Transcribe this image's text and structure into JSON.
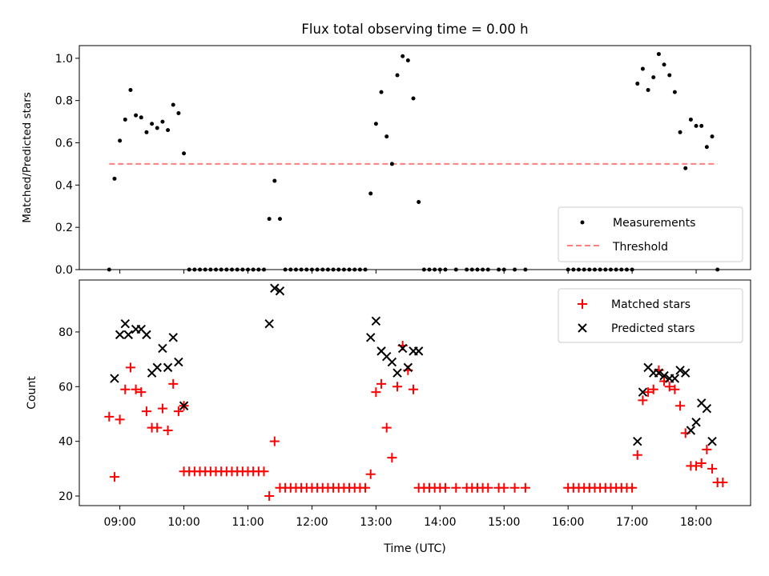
{
  "title": "Flux total observing time = 0.00 h",
  "colors": {
    "measurements": "#000000",
    "threshold": "#ff7f7f",
    "matched": "#ff0000",
    "predicted": "#000000"
  },
  "chart_data": [
    {
      "type": "scatter",
      "ylabel": "Matched/Predicted stars",
      "ylim": [
        0,
        1.06
      ],
      "yticks": [
        "0.0",
        "0.2",
        "0.4",
        "0.6",
        "0.8",
        "1.0"
      ],
      "legend": {
        "placement": "lower-right",
        "entries": [
          "Measurements",
          "Threshold"
        ]
      },
      "threshold": {
        "name": "Threshold",
        "value": 0.5,
        "x_range": [
          "08:50",
          "18:20"
        ]
      },
      "series": [
        {
          "name": "Measurements",
          "points": [
            [
              "08:50",
              0.0
            ],
            [
              "08:55",
              0.43
            ],
            [
              "09:00",
              0.61
            ],
            [
              "09:05",
              0.71
            ],
            [
              "09:10",
              0.85
            ],
            [
              "09:15",
              0.73
            ],
            [
              "09:20",
              0.72
            ],
            [
              "09:25",
              0.65
            ],
            [
              "09:30",
              0.69
            ],
            [
              "09:35",
              0.67
            ],
            [
              "09:40",
              0.7
            ],
            [
              "09:45",
              0.66
            ],
            [
              "09:50",
              0.78
            ],
            [
              "09:55",
              0.74
            ],
            [
              "10:00",
              0.55
            ],
            [
              "10:05",
              0.0
            ],
            [
              "10:10",
              0.0
            ],
            [
              "10:15",
              0.0
            ],
            [
              "10:20",
              0.0
            ],
            [
              "10:25",
              0.0
            ],
            [
              "10:30",
              0.0
            ],
            [
              "10:35",
              0.0
            ],
            [
              "10:40",
              0.0
            ],
            [
              "10:45",
              0.0
            ],
            [
              "10:50",
              0.0
            ],
            [
              "10:55",
              0.0
            ],
            [
              "11:00",
              0.0
            ],
            [
              "11:05",
              0.0
            ],
            [
              "11:10",
              0.0
            ],
            [
              "11:15",
              0.0
            ],
            [
              "11:20",
              0.24
            ],
            [
              "11:25",
              0.42
            ],
            [
              "11:30",
              0.24
            ],
            [
              "11:35",
              0.0
            ],
            [
              "11:40",
              0.0
            ],
            [
              "11:45",
              0.0
            ],
            [
              "11:50",
              0.0
            ],
            [
              "11:55",
              0.0
            ],
            [
              "12:00",
              0.0
            ],
            [
              "12:05",
              0.0
            ],
            [
              "12:10",
              0.0
            ],
            [
              "12:15",
              0.0
            ],
            [
              "12:20",
              0.0
            ],
            [
              "12:25",
              0.0
            ],
            [
              "12:30",
              0.0
            ],
            [
              "12:35",
              0.0
            ],
            [
              "12:40",
              0.0
            ],
            [
              "12:45",
              0.0
            ],
            [
              "12:50",
              0.0
            ],
            [
              "12:55",
              0.36
            ],
            [
              "13:00",
              0.69
            ],
            [
              "13:05",
              0.84
            ],
            [
              "13:10",
              0.63
            ],
            [
              "13:15",
              0.5
            ],
            [
              "13:20",
              0.92
            ],
            [
              "13:25",
              1.01
            ],
            [
              "13:30",
              0.99
            ],
            [
              "13:35",
              0.81
            ],
            [
              "13:40",
              0.32
            ],
            [
              "13:45",
              0.0
            ],
            [
              "13:50",
              0.0
            ],
            [
              "13:55",
              0.0
            ],
            [
              "14:00",
              0.0
            ],
            [
              "14:05",
              0.0
            ],
            [
              "14:15",
              0.0
            ],
            [
              "14:25",
              0.0
            ],
            [
              "14:30",
              0.0
            ],
            [
              "14:35",
              0.0
            ],
            [
              "14:40",
              0.0
            ],
            [
              "14:45",
              0.0
            ],
            [
              "14:55",
              0.0
            ],
            [
              "15:00",
              0.0
            ],
            [
              "15:10",
              0.0
            ],
            [
              "15:20",
              0.0
            ],
            [
              "16:00",
              0.0
            ],
            [
              "16:05",
              0.0
            ],
            [
              "16:10",
              0.0
            ],
            [
              "16:15",
              0.0
            ],
            [
              "16:20",
              0.0
            ],
            [
              "16:25",
              0.0
            ],
            [
              "16:30",
              0.0
            ],
            [
              "16:35",
              0.0
            ],
            [
              "16:40",
              0.0
            ],
            [
              "16:45",
              0.0
            ],
            [
              "16:50",
              0.0
            ],
            [
              "16:55",
              0.0
            ],
            [
              "17:00",
              0.0
            ],
            [
              "17:05",
              0.88
            ],
            [
              "17:10",
              0.95
            ],
            [
              "17:15",
              0.85
            ],
            [
              "17:20",
              0.91
            ],
            [
              "17:25",
              1.02
            ],
            [
              "17:30",
              0.97
            ],
            [
              "17:35",
              0.92
            ],
            [
              "17:40",
              0.84
            ],
            [
              "17:45",
              0.65
            ],
            [
              "17:50",
              0.48
            ],
            [
              "17:55",
              0.71
            ],
            [
              "18:00",
              0.68
            ],
            [
              "18:05",
              0.68
            ],
            [
              "18:10",
              0.58
            ],
            [
              "18:15",
              0.63
            ],
            [
              "18:20",
              0.0
            ]
          ]
        }
      ]
    },
    {
      "type": "scatter",
      "xlabel": "Time (UTC)",
      "ylabel": "Count",
      "ylim": [
        16.5,
        99
      ],
      "yticks": [
        "20",
        "40",
        "60",
        "80"
      ],
      "xticks": [
        "09:00",
        "10:00",
        "11:00",
        "12:00",
        "13:00",
        "14:00",
        "15:00",
        "16:00",
        "17:00",
        "18:00"
      ],
      "xlim": [
        "08:22",
        "18:51"
      ],
      "legend": {
        "placement": "top-right",
        "entries": [
          "Matched stars",
          "Predicted stars"
        ]
      },
      "series": [
        {
          "name": "Matched stars",
          "points": [
            [
              "08:50",
              49
            ],
            [
              "08:55",
              27
            ],
            [
              "09:00",
              48
            ],
            [
              "09:05",
              59
            ],
            [
              "09:10",
              67
            ],
            [
              "09:15",
              59
            ],
            [
              "09:20",
              58
            ],
            [
              "09:25",
              51
            ],
            [
              "09:30",
              45
            ],
            [
              "09:35",
              45
            ],
            [
              "09:40",
              52
            ],
            [
              "09:45",
              44
            ],
            [
              "09:50",
              61
            ],
            [
              "09:55",
              51
            ],
            [
              "10:00",
              53
            ],
            [
              "10:00",
              29
            ],
            [
              "10:05",
              29
            ],
            [
              "10:10",
              29
            ],
            [
              "10:15",
              29
            ],
            [
              "10:20",
              29
            ],
            [
              "10:25",
              29
            ],
            [
              "10:30",
              29
            ],
            [
              "10:35",
              29
            ],
            [
              "10:40",
              29
            ],
            [
              "10:45",
              29
            ],
            [
              "10:50",
              29
            ],
            [
              "10:55",
              29
            ],
            [
              "11:00",
              29
            ],
            [
              "11:05",
              29
            ],
            [
              "11:10",
              29
            ],
            [
              "11:15",
              29
            ],
            [
              "11:20",
              20
            ],
            [
              "11:25",
              40
            ],
            [
              "11:30",
              23
            ],
            [
              "11:35",
              23
            ],
            [
              "11:40",
              23
            ],
            [
              "11:45",
              23
            ],
            [
              "11:50",
              23
            ],
            [
              "11:55",
              23
            ],
            [
              "12:00",
              23
            ],
            [
              "12:05",
              23
            ],
            [
              "12:10",
              23
            ],
            [
              "12:15",
              23
            ],
            [
              "12:20",
              23
            ],
            [
              "12:25",
              23
            ],
            [
              "12:30",
              23
            ],
            [
              "12:35",
              23
            ],
            [
              "12:40",
              23
            ],
            [
              "12:45",
              23
            ],
            [
              "12:50",
              23
            ],
            [
              "12:55",
              28
            ],
            [
              "13:00",
              58
            ],
            [
              "13:05",
              61
            ],
            [
              "13:10",
              45
            ],
            [
              "13:15",
              34
            ],
            [
              "13:20",
              60
            ],
            [
              "13:25",
              75
            ],
            [
              "13:30",
              66
            ],
            [
              "13:35",
              59
            ],
            [
              "13:40",
              23
            ],
            [
              "13:45",
              23
            ],
            [
              "13:50",
              23
            ],
            [
              "13:55",
              23
            ],
            [
              "14:00",
              23
            ],
            [
              "14:05",
              23
            ],
            [
              "14:15",
              23
            ],
            [
              "14:25",
              23
            ],
            [
              "14:30",
              23
            ],
            [
              "14:35",
              23
            ],
            [
              "14:40",
              23
            ],
            [
              "14:45",
              23
            ],
            [
              "14:55",
              23
            ],
            [
              "15:00",
              23
            ],
            [
              "15:10",
              23
            ],
            [
              "15:20",
              23
            ],
            [
              "16:00",
              23
            ],
            [
              "16:05",
              23
            ],
            [
              "16:10",
              23
            ],
            [
              "16:15",
              23
            ],
            [
              "16:20",
              23
            ],
            [
              "16:25",
              23
            ],
            [
              "16:30",
              23
            ],
            [
              "16:35",
              23
            ],
            [
              "16:40",
              23
            ],
            [
              "16:45",
              23
            ],
            [
              "16:50",
              23
            ],
            [
              "16:55",
              23
            ],
            [
              "17:00",
              23
            ],
            [
              "17:05",
              35
            ],
            [
              "17:10",
              55
            ],
            [
              "17:15",
              58
            ],
            [
              "17:20",
              59
            ],
            [
              "17:25",
              66
            ],
            [
              "17:30",
              62
            ],
            [
              "17:35",
              60
            ],
            [
              "17:40",
              59
            ],
            [
              "17:45",
              53
            ],
            [
              "17:50",
              43
            ],
            [
              "17:55",
              31
            ],
            [
              "18:00",
              31
            ],
            [
              "18:05",
              32
            ],
            [
              "18:10",
              37
            ],
            [
              "18:15",
              30
            ],
            [
              "18:20",
              25
            ],
            [
              "18:25",
              25
            ]
          ]
        },
        {
          "name": "Predicted stars",
          "points": [
            [
              "08:55",
              63
            ],
            [
              "09:00",
              79
            ],
            [
              "09:05",
              83
            ],
            [
              "09:08",
              79
            ],
            [
              "09:15",
              81
            ],
            [
              "09:20",
              81
            ],
            [
              "09:25",
              79
            ],
            [
              "09:30",
              65
            ],
            [
              "09:35",
              67
            ],
            [
              "09:40",
              74
            ],
            [
              "09:45",
              67
            ],
            [
              "09:50",
              78
            ],
            [
              "09:55",
              69
            ],
            [
              "10:00",
              53
            ],
            [
              "11:20",
              83
            ],
            [
              "11:25",
              96
            ],
            [
              "11:30",
              95
            ],
            [
              "12:55",
              78
            ],
            [
              "13:00",
              84
            ],
            [
              "13:05",
              73
            ],
            [
              "13:10",
              71
            ],
            [
              "13:15",
              69
            ],
            [
              "13:20",
              65
            ],
            [
              "13:25",
              74
            ],
            [
              "13:30",
              67
            ],
            [
              "13:35",
              73
            ],
            [
              "13:40",
              73
            ],
            [
              "17:05",
              40
            ],
            [
              "17:10",
              58
            ],
            [
              "17:15",
              67
            ],
            [
              "17:20",
              65
            ],
            [
              "17:25",
              65
            ],
            [
              "17:30",
              64
            ],
            [
              "17:35",
              63
            ],
            [
              "17:40",
              63
            ],
            [
              "17:45",
              66
            ],
            [
              "17:50",
              65
            ],
            [
              "17:55",
              44
            ],
            [
              "18:00",
              47
            ],
            [
              "18:05",
              54
            ],
            [
              "18:10",
              52
            ],
            [
              "18:15",
              40
            ]
          ]
        }
      ]
    }
  ]
}
